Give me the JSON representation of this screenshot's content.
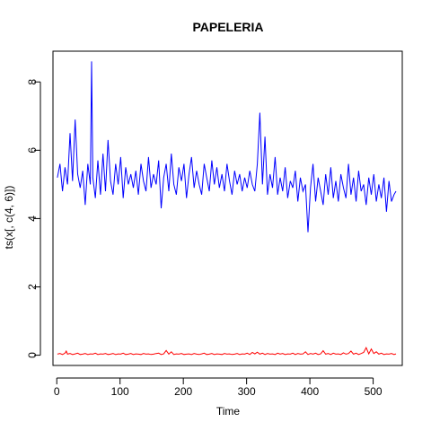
{
  "chart_data": {
    "type": "line",
    "title": "PAPELERIA",
    "xlabel": "Time",
    "ylabel": "ts(x[, c(4, 6)])",
    "xlim": [
      -6,
      546
    ],
    "ylim": [
      -0.3,
      8.9
    ],
    "xticks": [
      0,
      100,
      200,
      300,
      400,
      500
    ],
    "yticks": [
      0,
      2,
      4,
      6,
      8
    ],
    "grid": false,
    "legend": "none",
    "series": [
      {
        "color": "#0000ff",
        "x": [
          1,
          5,
          9,
          13,
          17,
          21,
          25,
          29,
          33,
          37,
          41,
          45,
          49,
          53,
          55,
          57,
          61,
          65,
          69,
          73,
          77,
          81,
          85,
          89,
          93,
          97,
          101,
          105,
          109,
          113,
          117,
          121,
          125,
          129,
          133,
          137,
          141,
          145,
          149,
          153,
          157,
          161,
          165,
          169,
          173,
          177,
          181,
          185,
          189,
          193,
          197,
          201,
          205,
          209,
          213,
          217,
          221,
          225,
          229,
          233,
          237,
          241,
          245,
          249,
          253,
          257,
          261,
          265,
          269,
          273,
          277,
          281,
          285,
          289,
          293,
          297,
          301,
          305,
          309,
          313,
          317,
          321,
          325,
          329,
          333,
          337,
          341,
          345,
          349,
          353,
          357,
          361,
          365,
          369,
          373,
          377,
          381,
          385,
          389,
          393,
          397,
          401,
          405,
          409,
          413,
          417,
          421,
          425,
          429,
          433,
          437,
          441,
          445,
          449,
          453,
          457,
          461,
          465,
          469,
          473,
          477,
          481,
          485,
          489,
          493,
          497,
          501,
          505,
          509,
          513,
          517,
          521,
          525,
          529,
          533,
          536
        ],
        "y": [
          5.2,
          5.6,
          4.8,
          5.5,
          5.0,
          6.5,
          5.1,
          6.9,
          5.3,
          4.9,
          5.4,
          4.4,
          5.6,
          5.0,
          8.6,
          5.2,
          4.6,
          5.7,
          4.7,
          5.9,
          4.8,
          6.3,
          5.1,
          4.7,
          5.6,
          5.0,
          5.8,
          4.6,
          5.5,
          5.0,
          5.3,
          4.9,
          5.4,
          4.7,
          5.6,
          5.1,
          4.8,
          5.8,
          4.9,
          5.3,
          5.0,
          5.7,
          4.3,
          5.2,
          5.6,
          4.8,
          5.9,
          5.0,
          4.7,
          5.5,
          5.1,
          5.6,
          4.6,
          5.3,
          5.8,
          4.9,
          5.4,
          5.0,
          4.7,
          5.6,
          5.2,
          4.8,
          5.7,
          5.0,
          5.5,
          4.9,
          5.3,
          4.8,
          5.6,
          5.1,
          4.7,
          5.4,
          5.0,
          5.3,
          4.8,
          5.2,
          4.9,
          5.4,
          5.0,
          4.8,
          5.6,
          7.1,
          5.0,
          6.4,
          4.7,
          5.3,
          4.9,
          5.8,
          4.7,
          5.2,
          4.8,
          5.5,
          4.6,
          5.1,
          4.9,
          5.4,
          4.5,
          5.2,
          4.8,
          5.0,
          3.6,
          4.9,
          5.6,
          4.5,
          5.2,
          4.8,
          4.4,
          5.3,
          4.7,
          5.5,
          4.6,
          5.1,
          4.5,
          5.3,
          4.9,
          4.6,
          5.6,
          4.7,
          5.2,
          4.5,
          5.4,
          4.8,
          5.0,
          4.4,
          5.2,
          4.7,
          5.3,
          4.5,
          5.0,
          4.6,
          5.2,
          4.2,
          5.1,
          4.5,
          4.7,
          4.8
        ]
      },
      {
        "color": "#ff0000",
        "x": [
          1,
          5,
          9,
          13,
          15,
          17,
          21,
          25,
          29,
          33,
          37,
          41,
          45,
          49,
          53,
          57,
          61,
          65,
          69,
          73,
          77,
          81,
          85,
          89,
          93,
          97,
          101,
          105,
          109,
          113,
          117,
          121,
          125,
          129,
          133,
          137,
          141,
          145,
          149,
          153,
          157,
          161,
          165,
          169,
          173,
          177,
          181,
          185,
          189,
          193,
          197,
          201,
          205,
          209,
          213,
          217,
          221,
          225,
          229,
          233,
          237,
          241,
          245,
          249,
          253,
          257,
          261,
          265,
          269,
          273,
          277,
          281,
          285,
          289,
          293,
          297,
          301,
          305,
          309,
          313,
          317,
          321,
          325,
          329,
          333,
          337,
          341,
          345,
          349,
          353,
          357,
          361,
          365,
          369,
          373,
          377,
          381,
          385,
          389,
          393,
          397,
          401,
          405,
          409,
          413,
          417,
          421,
          425,
          429,
          433,
          437,
          441,
          445,
          449,
          453,
          457,
          461,
          465,
          469,
          473,
          477,
          481,
          485,
          489,
          493,
          497,
          501,
          505,
          509,
          513,
          517,
          521,
          525,
          529,
          533,
          536
        ],
        "y": [
          0.03,
          0.05,
          0.02,
          0.06,
          0.12,
          0.03,
          0.05,
          0.02,
          0.04,
          0.06,
          0.02,
          0.03,
          0.05,
          0.02,
          0.04,
          0.03,
          0.06,
          0.02,
          0.04,
          0.03,
          0.05,
          0.02,
          0.03,
          0.05,
          0.02,
          0.04,
          0.03,
          0.06,
          0.02,
          0.03,
          0.05,
          0.02,
          0.04,
          0.03,
          0.02,
          0.05,
          0.03,
          0.04,
          0.02,
          0.03,
          0.05,
          0.06,
          0.02,
          0.04,
          0.14,
          0.03,
          0.1,
          0.02,
          0.04,
          0.03,
          0.05,
          0.02,
          0.03,
          0.04,
          0.02,
          0.05,
          0.03,
          0.02,
          0.04,
          0.06,
          0.02,
          0.03,
          0.05,
          0.02,
          0.04,
          0.03,
          0.02,
          0.05,
          0.03,
          0.04,
          0.02,
          0.03,
          0.05,
          0.02,
          0.04,
          0.03,
          0.06,
          0.02,
          0.08,
          0.04,
          0.09,
          0.03,
          0.06,
          0.02,
          0.05,
          0.03,
          0.04,
          0.02,
          0.06,
          0.03,
          0.05,
          0.02,
          0.04,
          0.03,
          0.06,
          0.02,
          0.05,
          0.03,
          0.04,
          0.1,
          0.02,
          0.05,
          0.03,
          0.06,
          0.02,
          0.04,
          0.13,
          0.03,
          0.05,
          0.02,
          0.06,
          0.03,
          0.04,
          0.02,
          0.07,
          0.03,
          0.05,
          0.12,
          0.03,
          0.06,
          0.02,
          0.05,
          0.08,
          0.22,
          0.04,
          0.18,
          0.05,
          0.1,
          0.03,
          0.06,
          0.02,
          0.04,
          0.03,
          0.05,
          0.02,
          0.04
        ]
      }
    ]
  }
}
